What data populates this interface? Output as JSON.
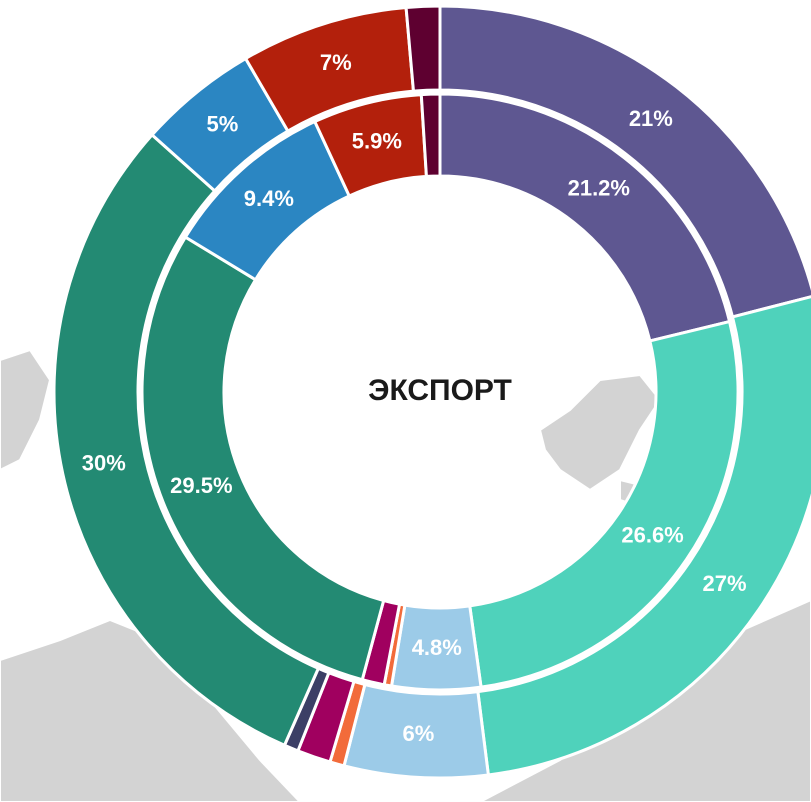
{
  "chart_data": {
    "type": "donut",
    "center_label": "ЭКСПОРТ",
    "colors": [
      "#5e5791",
      "#4fd2bb",
      "#9ccbe8",
      "#f26b3a",
      "#a0005f",
      "#3c3f66",
      "#238a73",
      "#2b86c2",
      "#b3200c",
      "#5e0030"
    ],
    "series": [
      {
        "ring": "outer",
        "values": [
          21,
          27,
          6,
          0.6,
          1.4,
          0.6,
          30,
          5,
          7,
          1.4
        ],
        "value_labels": [
          "21%",
          "27%",
          "6%",
          null,
          null,
          null,
          "30%",
          "5%",
          "7%",
          null
        ]
      },
      {
        "ring": "inner",
        "values": [
          21.2,
          26.6,
          4.8,
          0.4,
          1.2,
          null,
          29.5,
          9.4,
          5.9,
          1.0
        ],
        "value_labels": [
          "21.2%",
          "26.6%",
          "4.8%",
          null,
          null,
          null,
          "29.5%",
          "9.4%",
          "5.9%",
          null
        ]
      }
    ]
  }
}
